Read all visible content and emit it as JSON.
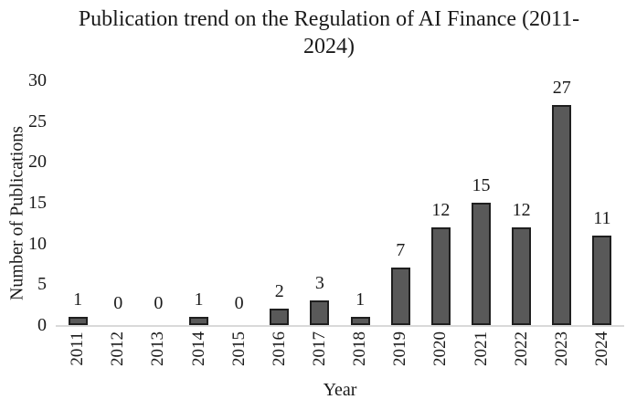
{
  "chart_data": {
    "type": "bar",
    "title": "Publication trend on the Regulation of AI Finance (2011-2024)",
    "xlabel": "Year",
    "ylabel": "Number of Publications",
    "categories": [
      "2011",
      "2012",
      "2013",
      "2014",
      "2015",
      "2016",
      "2017",
      "2018",
      "2019",
      "2020",
      "2021",
      "2022",
      "2023",
      "2024"
    ],
    "values": [
      1,
      0,
      0,
      1,
      0,
      2,
      3,
      1,
      7,
      12,
      15,
      12,
      27,
      11
    ],
    "ylim": [
      0,
      30
    ],
    "yticks": [
      0,
      5,
      10,
      15,
      20,
      25,
      30
    ],
    "grid": false,
    "legend": "none",
    "data_labels": true,
    "colors": {
      "bar_fill": "#595959",
      "bar_border": "#1f1f1f",
      "axis_line": "#d9d9d9",
      "text": "#1a1a1a"
    }
  }
}
